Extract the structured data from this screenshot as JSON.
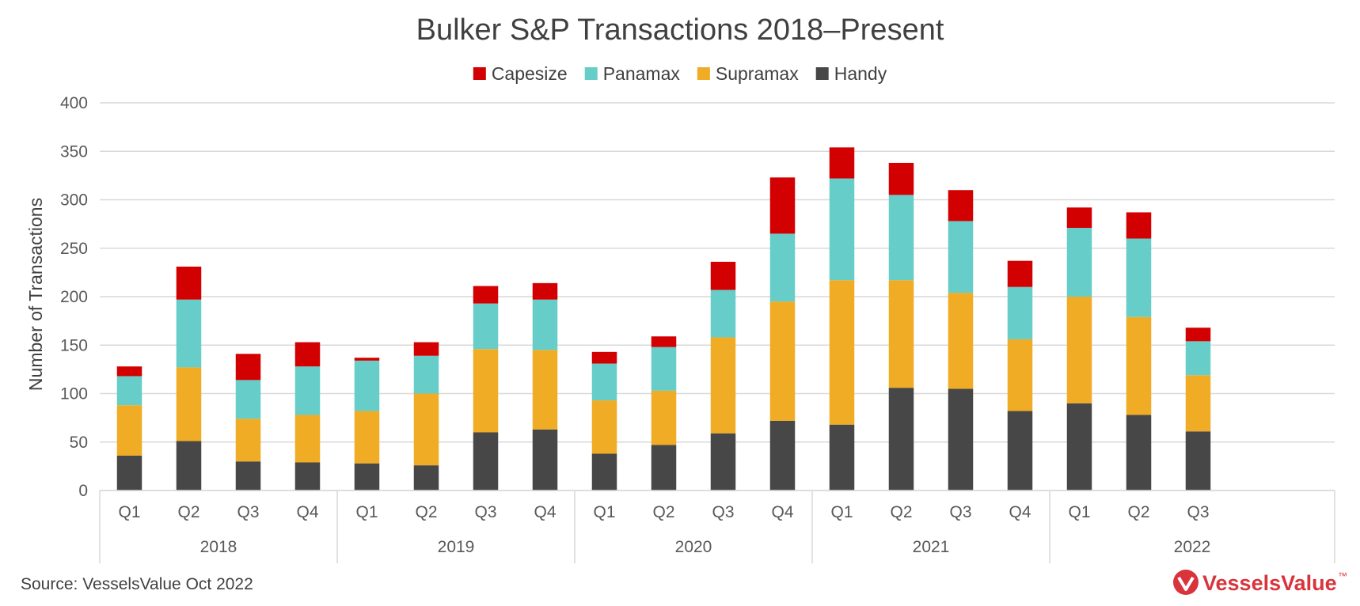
{
  "chart_data": {
    "type": "bar",
    "stacked": true,
    "title": "Bulker S&P Transactions 2018–Present",
    "ylabel": "Number of Transactions",
    "ylim": [
      0,
      400
    ],
    "yticks": [
      0,
      50,
      100,
      150,
      200,
      250,
      300,
      350,
      400
    ],
    "grid": true,
    "legend_position": "top",
    "groups": [
      {
        "label": "2018",
        "quarters": [
          "Q1",
          "Q2",
          "Q3",
          "Q4"
        ]
      },
      {
        "label": "2019",
        "quarters": [
          "Q1",
          "Q2",
          "Q3",
          "Q4"
        ]
      },
      {
        "label": "2020",
        "quarters": [
          "Q1",
          "Q2",
          "Q3",
          "Q4"
        ]
      },
      {
        "label": "2021",
        "quarters": [
          "Q1",
          "Q2",
          "Q3",
          "Q4"
        ]
      },
      {
        "label": "2022",
        "quarters": [
          "Q1",
          "Q2",
          "Q3"
        ]
      }
    ],
    "legend_order": [
      "Capesize",
      "Panamax",
      "Supramax",
      "Handy"
    ],
    "series": [
      {
        "name": "Handy",
        "color": "#474747",
        "values": [
          36,
          51,
          30,
          29,
          28,
          26,
          60,
          63,
          38,
          47,
          59,
          72,
          68,
          106,
          105,
          82,
          90,
          78,
          61
        ]
      },
      {
        "name": "Supramax",
        "color": "#f0ac25",
        "values": [
          52,
          76,
          44,
          49,
          54,
          74,
          86,
          82,
          55,
          56,
          99,
          123,
          149,
          111,
          99,
          74,
          110,
          101,
          58
        ]
      },
      {
        "name": "Panamax",
        "color": "#66cdc8",
        "values": [
          30,
          70,
          40,
          50,
          52,
          39,
          47,
          52,
          38,
          45,
          49,
          70,
          105,
          88,
          74,
          54,
          71,
          81,
          35
        ]
      },
      {
        "name": "Capesize",
        "color": "#d20000",
        "values": [
          10,
          34,
          27,
          25,
          3,
          14,
          18,
          17,
          12,
          11,
          29,
          58,
          32,
          33,
          32,
          27,
          21,
          27,
          14
        ]
      }
    ]
  },
  "footer": {
    "source": "Source: VesselsValue Oct 2022",
    "logo_text": "VesselsValue",
    "logo_tm": "™"
  }
}
